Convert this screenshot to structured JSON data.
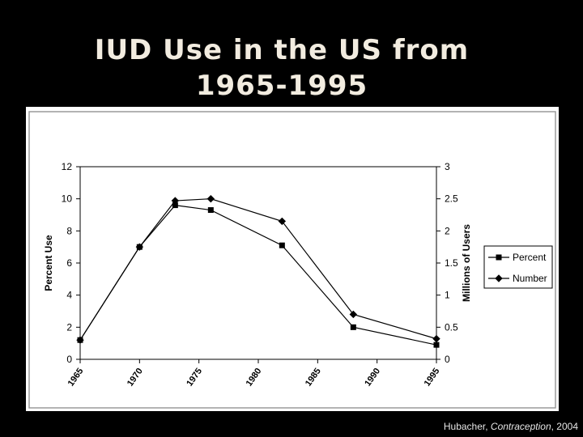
{
  "slide": {
    "title_line1": "IUD Use in the US from",
    "title_line2": "1965-1995"
  },
  "citation": {
    "author": "Hubacher, ",
    "journal": "Contraception",
    "year": ", 2004"
  },
  "colors": {
    "background": "#000000",
    "title": "#f2ece0",
    "panel": "#ffffff",
    "series": "#000000"
  },
  "chart_data": {
    "type": "line",
    "title": "",
    "xlabel": "",
    "ylabel": "Percent Use",
    "y2label": "Millions of Users",
    "xlim": [
      1965,
      1995
    ],
    "ylim": [
      0,
      12
    ],
    "y2lim": [
      0,
      3
    ],
    "x_ticks": [
      "1965",
      "1970",
      "1975",
      "1980",
      "1985",
      "1990",
      "1995"
    ],
    "y_ticks": [
      "0",
      "2",
      "4",
      "6",
      "8",
      "10",
      "12"
    ],
    "y2_ticks": [
      "0",
      "0.5",
      "1",
      "1.5",
      "2",
      "2.5",
      "3"
    ],
    "grid": false,
    "legend": "right",
    "series": [
      {
        "name": "Percent",
        "axis": "left",
        "marker": "square",
        "points": [
          [
            1965,
            1.2
          ],
          [
            1970,
            7.0
          ],
          [
            1973,
            9.6
          ],
          [
            1976,
            9.3
          ],
          [
            1982,
            7.1
          ],
          [
            1988,
            2.0
          ],
          [
            1995,
            0.9
          ]
        ]
      },
      {
        "name": "Number",
        "axis": "right",
        "marker": "diamond",
        "points": [
          [
            1965,
            0.3
          ],
          [
            1970,
            1.75
          ],
          [
            1973,
            2.47
          ],
          [
            1976,
            2.5
          ],
          [
            1982,
            2.15
          ],
          [
            1988,
            0.7
          ],
          [
            1995,
            0.32
          ]
        ]
      }
    ]
  }
}
